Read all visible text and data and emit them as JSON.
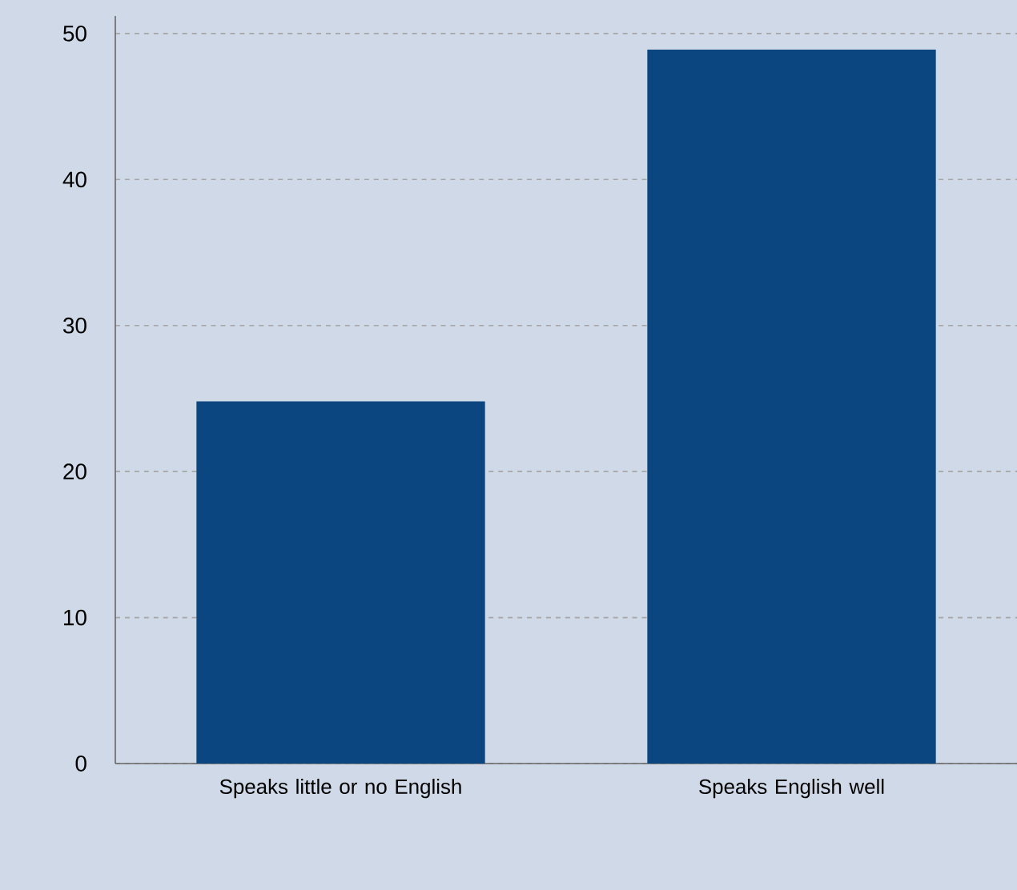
{
  "chart_data": {
    "type": "bar",
    "categories": [
      "Speaks little or no English",
      "Speaks English well"
    ],
    "values": [
      24.8,
      48.9
    ],
    "color": "#0b4680",
    "ylim": [
      0,
      51.2
    ],
    "yticks": [
      0,
      10,
      20,
      30,
      40,
      50
    ],
    "grid": "y"
  }
}
